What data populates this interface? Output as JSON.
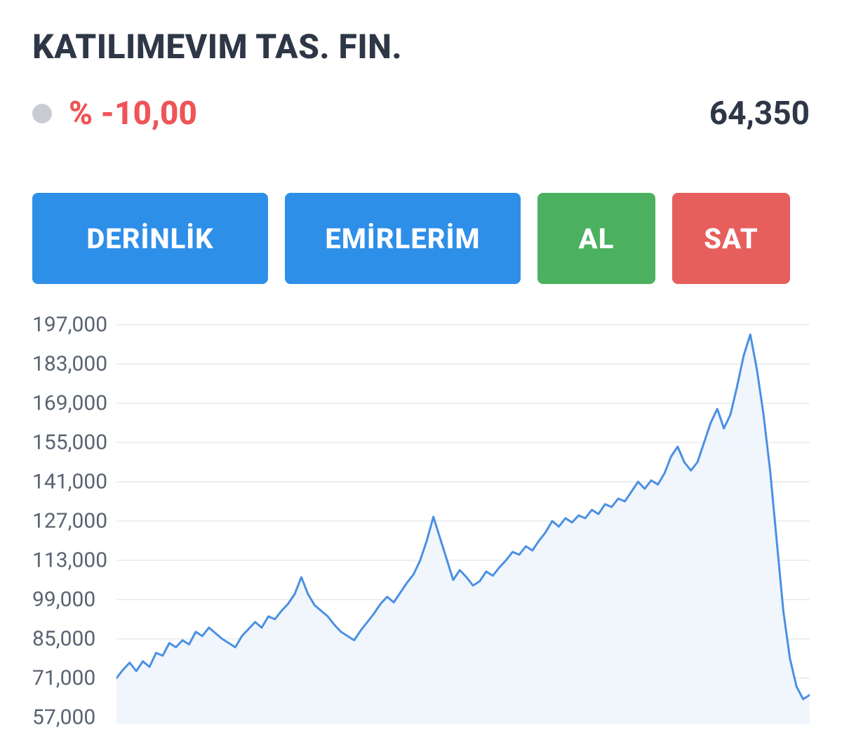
{
  "header": {
    "title": "KATILIMEVIM TAS. FIN.",
    "percent_change": "% -10,00",
    "percent_change_color": "#ef5456",
    "status_dot_color": "#c9ccd2",
    "price": "64,350"
  },
  "buttons": {
    "depth": {
      "label": "DERİNLİK",
      "bg": "#2e8fe9"
    },
    "orders": {
      "label": "EMİRLERİM",
      "bg": "#2e8fe9"
    },
    "buy": {
      "label": "AL",
      "bg": "#4bb160"
    },
    "sell": {
      "label": "SAT",
      "bg": "#e65f5d"
    }
  },
  "chart": {
    "type": "line-area",
    "y_min": 57000,
    "y_max": 197000,
    "y_ticks": [
      197000,
      183000,
      169000,
      155000,
      141000,
      127000,
      113000,
      99000,
      85000,
      71000,
      57000
    ],
    "y_tick_labels": [
      "197,000",
      "183,000",
      "169,000",
      "155,000",
      "141,000",
      "127,000",
      "113,000",
      "99,000",
      "85,000",
      "71,000",
      "57,000"
    ],
    "grid_color": "#d9dce1",
    "line_color": "#4a90e2",
    "line_width": 3,
    "fill_color": "#eef5fd",
    "fill_opacity": 0.85,
    "background_color": "#ffffff",
    "values": [
      71000,
      74000,
      76500,
      73500,
      77000,
      75000,
      80000,
      79000,
      83500,
      82000,
      84500,
      83000,
      87500,
      86000,
      89000,
      87000,
      85000,
      83500,
      82000,
      86000,
      88500,
      91000,
      89000,
      93000,
      92000,
      95000,
      97500,
      101000,
      107000,
      101000,
      97000,
      95000,
      93000,
      90000,
      87500,
      86000,
      84500,
      88000,
      91000,
      94000,
      97500,
      100000,
      98000,
      101500,
      105000,
      108000,
      113000,
      120000,
      128500,
      121000,
      113500,
      106000,
      109500,
      107000,
      104000,
      105500,
      109000,
      107500,
      110500,
      113000,
      116000,
      115000,
      118000,
      116500,
      120000,
      123000,
      127000,
      125000,
      128000,
      126500,
      129000,
      128000,
      131000,
      129500,
      133000,
      132000,
      135000,
      134000,
      137500,
      141000,
      138500,
      141500,
      140000,
      144000,
      150000,
      153500,
      148000,
      145000,
      148000,
      155000,
      162000,
      167000,
      160000,
      165000,
      175000,
      186000,
      193500,
      181000,
      165000,
      145000,
      120000,
      95000,
      78000,
      68000,
      63500,
      65000
    ]
  }
}
